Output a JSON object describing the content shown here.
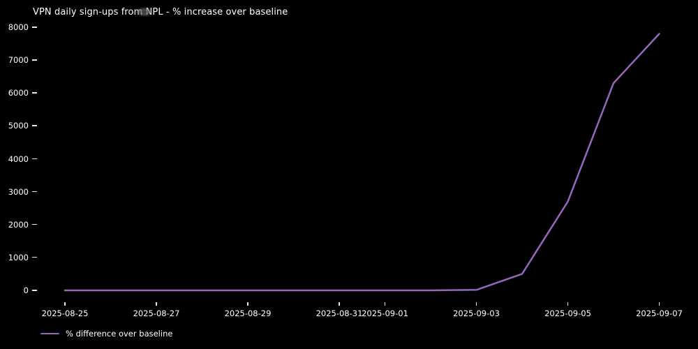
{
  "title": "VPN daily sign-ups from NPL - % increase over baseline",
  "colors": {
    "background": "#000000",
    "text": "#ffffff",
    "line": "#9467bd"
  },
  "legend": {
    "label": "% difference over baseline"
  },
  "chart_data": {
    "type": "line",
    "title": "VPN daily sign-ups from NPL - % increase over baseline",
    "xlabel": "",
    "ylabel": "",
    "x": [
      "2025-08-25",
      "2025-08-26",
      "2025-08-27",
      "2025-08-28",
      "2025-08-29",
      "2025-08-30",
      "2025-08-31",
      "2025-09-01",
      "2025-09-02",
      "2025-09-03",
      "2025-09-04",
      "2025-09-05",
      "2025-09-06",
      "2025-09-07"
    ],
    "series": [
      {
        "name": "% difference over baseline",
        "color": "#9467bd",
        "values": [
          0,
          0,
          0,
          0,
          0,
          0,
          0,
          0,
          0,
          15,
          500,
          2700,
          6300,
          7800
        ]
      }
    ],
    "xticks": [
      "2025-08-25",
      "2025-08-27",
      "2025-08-29",
      "2025-08-31",
      "2025-09-01",
      "2025-09-03",
      "2025-09-05",
      "2025-09-07"
    ],
    "yticks": [
      0,
      1000,
      2000,
      3000,
      4000,
      5000,
      6000,
      7000,
      8000
    ],
    "ylim": [
      0,
      8000
    ],
    "grid": false,
    "legend_position": "lower-left-outside",
    "background": "black"
  }
}
